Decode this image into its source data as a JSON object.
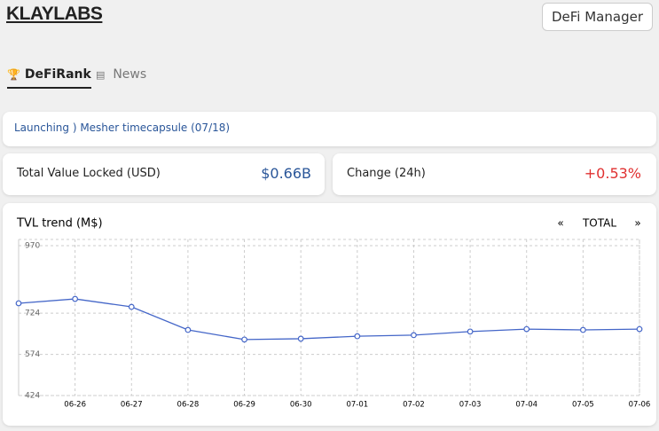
{
  "header": {
    "logo": "KLAYLABS",
    "button": "DeFi Manager"
  },
  "tabs": [
    "DeFiRank",
    "News"
  ],
  "notice": "Launching ) Mesher timecapsule (07/18)",
  "stats": [
    {
      "label": "Total Value Locked (USD)",
      "value": "$0.66B"
    },
    {
      "label": "Change (24h)",
      "value": "+0.53%"
    }
  ],
  "chart_controls": {
    "prev": "«",
    "range": "TOTAL",
    "next": "»"
  },
  "chart_data": {
    "type": "line",
    "title": "TVL trend (M$)",
    "categories": [
      null,
      "06-26",
      "06-27",
      "06-28",
      "06-29",
      "06-30",
      "07-01",
      "07-02",
      "07-03",
      "07-04",
      "07-05",
      "07-06"
    ],
    "series": [
      {
        "color": "#4466c8",
        "values": [
          760,
          776,
          747,
          663,
          628,
          631,
          640,
          644,
          657,
          666,
          663,
          666
        ]
      }
    ],
    "ylim": [
      424,
      970
    ],
    "yticks": [
      424,
      574,
      724,
      970
    ],
    "grid": true
  }
}
